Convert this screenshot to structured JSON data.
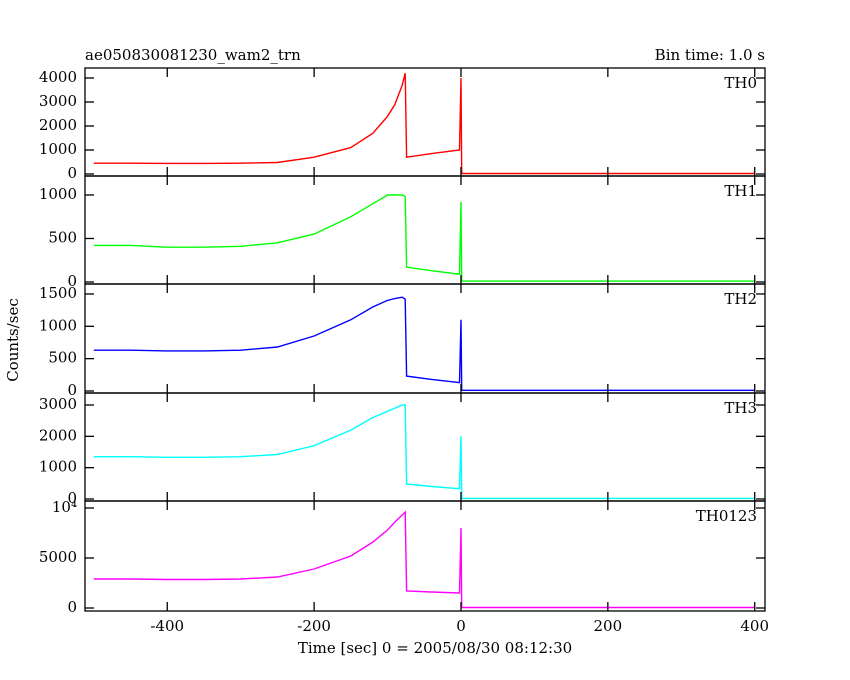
{
  "ylabel": "Counts/sec",
  "chart_data": [
    {
      "type": "line",
      "title": "ae050830081230_wam2_trn",
      "subtitle": "Bin time: 1.0 s",
      "x": [
        -500,
        -450,
        -400,
        -350,
        -300,
        -250,
        -200,
        -150,
        -120,
        -100,
        -90,
        -80,
        -76,
        -74,
        -40,
        -2,
        0,
        1,
        100,
        200,
        300,
        400
      ],
      "series": [
        {
          "name": "TH0",
          "color": "#ff0000",
          "values": [
            450,
            450,
            440,
            440,
            450,
            480,
            700,
            1100,
            1700,
            2400,
            2900,
            3700,
            4200,
            700,
            850,
            1000,
            4000,
            20,
            20,
            20,
            20,
            20
          ]
        }
      ],
      "xlim": [
        -512,
        414
      ],
      "xticks": [
        -400,
        -200,
        0,
        200,
        400
      ],
      "ylim": [
        -83,
        4417
      ],
      "yticks": [
        0,
        1000,
        2000,
        3000,
        4000
      ]
    },
    {
      "type": "line",
      "x": [
        -500,
        -450,
        -400,
        -350,
        -300,
        -250,
        -200,
        -150,
        -120,
        -100,
        -90,
        -80,
        -76,
        -74,
        -40,
        -2,
        0,
        1,
        100,
        200,
        300,
        400
      ],
      "series": [
        {
          "name": "TH1",
          "color": "#00ff00",
          "values": [
            420,
            420,
            400,
            400,
            410,
            450,
            550,
            750,
            900,
            1000,
            1000,
            1000,
            980,
            170,
            130,
            90,
            920,
            10,
            10,
            10,
            10,
            10
          ]
        }
      ],
      "xlim": [
        -512,
        414
      ],
      "xticks": [
        -400,
        -200,
        0,
        200,
        400
      ],
      "ylim": [
        -23,
        1218
      ],
      "yticks": [
        0,
        500,
        1000
      ]
    },
    {
      "type": "line",
      "x": [
        -500,
        -450,
        -400,
        -350,
        -300,
        -250,
        -200,
        -150,
        -120,
        -100,
        -90,
        -80,
        -76,
        -74,
        -40,
        -2,
        0,
        1,
        100,
        200,
        300,
        400
      ],
      "series": [
        {
          "name": "TH2",
          "color": "#0000ff",
          "values": [
            630,
            630,
            620,
            620,
            630,
            680,
            850,
            1100,
            1300,
            1400,
            1430,
            1450,
            1420,
            230,
            180,
            130,
            1100,
            10,
            10,
            10,
            10,
            10
          ]
        }
      ],
      "xlim": [
        -512,
        414
      ],
      "xticks": [
        -400,
        -200,
        0,
        200,
        400
      ],
      "ylim": [
        -31,
        1654
      ],
      "yticks": [
        0,
        500,
        1000,
        1500
      ]
    },
    {
      "type": "line",
      "x": [
        -500,
        -450,
        -400,
        -350,
        -300,
        -250,
        -200,
        -150,
        -120,
        -100,
        -90,
        -80,
        -76,
        -74,
        -40,
        -2,
        0,
        1,
        100,
        200,
        300,
        400
      ],
      "series": [
        {
          "name": "TH3",
          "color": "#00ffff",
          "values": [
            1350,
            1350,
            1330,
            1330,
            1350,
            1420,
            1700,
            2200,
            2600,
            2800,
            2900,
            3000,
            3000,
            480,
            400,
            330,
            2000,
            20,
            20,
            20,
            20,
            20
          ]
        }
      ],
      "xlim": [
        -512,
        414
      ],
      "xticks": [
        -400,
        -200,
        0,
        200,
        400
      ],
      "ylim": [
        -64,
        3383
      ],
      "yticks": [
        0,
        1000,
        2000,
        3000
      ]
    },
    {
      "type": "line",
      "xlabel": "Time [sec] 0 = 2005/08/30 08:12:30",
      "x": [
        -500,
        -450,
        -400,
        -350,
        -300,
        -250,
        -200,
        -150,
        -120,
        -100,
        -90,
        -80,
        -76,
        -74,
        -40,
        -2,
        0,
        1,
        100,
        200,
        300,
        400
      ],
      "series": [
        {
          "name": "TH0123",
          "color": "#ff00ff",
          "values": [
            2900,
            2900,
            2850,
            2850,
            2900,
            3100,
            3900,
            5200,
            6600,
            7800,
            8600,
            9300,
            9600,
            1700,
            1600,
            1500,
            8000,
            50,
            50,
            50,
            50,
            50
          ]
        }
      ],
      "xlim": [
        -512,
        414
      ],
      "xticks": [
        -400,
        -200,
        0,
        200,
        400
      ],
      "ylim": [
        -300,
        10700
      ],
      "yticks": [
        0,
        5000,
        {
          "value": 10000,
          "label": "10⁴"
        }
      ]
    }
  ]
}
